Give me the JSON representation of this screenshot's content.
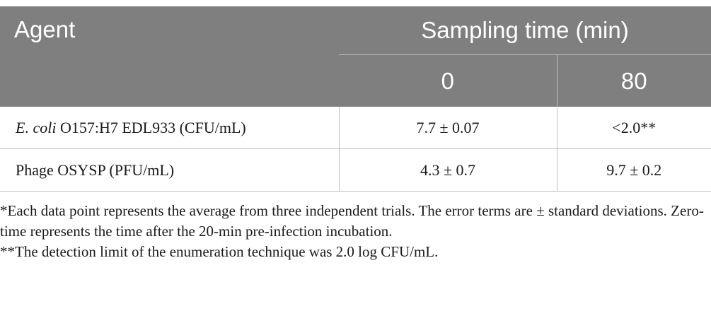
{
  "table": {
    "header": {
      "agent": "Agent",
      "sampling_time": "Sampling time (min)",
      "time_0": "0",
      "time_80": "80"
    },
    "rows": [
      {
        "agent_italic": "E. coli",
        "agent_rest": " O157:H7 EDL933 (CFU/mL)",
        "value_0": "7.7 ± 0.07",
        "value_80": "<2.0**"
      },
      {
        "agent_italic": "",
        "agent_rest": "Phage OSYSP (PFU/mL)",
        "value_0": "4.3 ± 0.7",
        "value_80": "9.7 ± 0.2"
      }
    ]
  },
  "footnotes": [
    "*Each data point represents the average from three independent trials. The error terms are ± standard deviations. Zero-time represents the time after the 20-min pre-infection incubation.",
    "**The detection limit of the enumeration technique was 2.0 log CFU/mL."
  ]
}
